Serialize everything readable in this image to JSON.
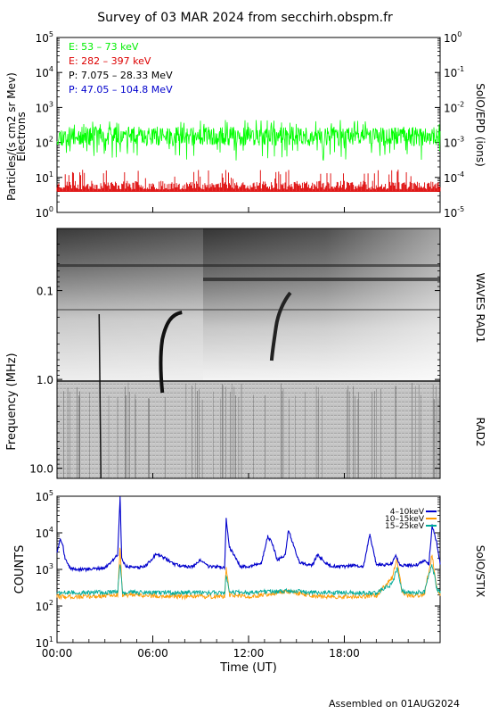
{
  "title": "Survey of 03 MAR 2024 from secchirh.obspm.fr",
  "footer": "Assembled on 01AUG2024",
  "colors": {
    "green": "#00ff00",
    "red": "#dd0000",
    "black": "#000000",
    "blue": "#0000cc",
    "orange": "#ff9900",
    "teal": "#00aa99"
  },
  "chart_data": [
    {
      "type": "line",
      "panel": "particles",
      "ylabel": "Particles/(s cm2 sr Mev)",
      "ylabel2": "Electrons",
      "right_label": "SolO/EPD (ions)",
      "yscale": "log",
      "ylim": [
        1,
        100000
      ],
      "y_ticks": [
        {
          "base": "10",
          "exp": "0"
        },
        {
          "base": "10",
          "exp": "1"
        },
        {
          "base": "10",
          "exp": "2"
        },
        {
          "base": "10",
          "exp": "3"
        },
        {
          "base": "10",
          "exp": "4"
        },
        {
          "base": "10",
          "exp": "5"
        }
      ],
      "right_ylim": [
        1e-05,
        1
      ],
      "right_ticks": [
        {
          "base": "10",
          "exp": "-5"
        },
        {
          "base": "10",
          "exp": "-4"
        },
        {
          "base": "10",
          "exp": "-3"
        },
        {
          "base": "10",
          "exp": "-2"
        },
        {
          "base": "10",
          "exp": "-1"
        },
        {
          "base": "10",
          "exp": "0"
        }
      ],
      "legend": [
        {
          "label": "E: 53 – 73 keV",
          "color": "#00ff00"
        },
        {
          "label": "E: 282 – 397 keV",
          "color": "#dd0000"
        },
        {
          "label": "P: 7.075 – 28.33 MeV",
          "color": "#000000"
        },
        {
          "label": "P: 47.05 – 104.8 MeV",
          "color": "#0000cc"
        }
      ],
      "series": [
        {
          "name": "E: 53 – 73 keV",
          "color": "#00ff00",
          "x_hours": [
            0,
            24
          ],
          "y_typical": 150,
          "y_range": [
            30,
            450
          ]
        },
        {
          "name": "E: 282 – 397 keV",
          "color": "#dd0000",
          "x_hours": [
            0,
            24
          ],
          "y_typical": 6,
          "y_range": [
            4,
            20
          ]
        }
      ]
    },
    {
      "type": "heatmap",
      "panel": "waves",
      "ylabel": "Frequency (MHz)",
      "yscale": "log",
      "ylim": [
        13,
        0.02
      ],
      "y_ticks": [
        {
          "label": "0.1",
          "value": 0.1
        },
        {
          "label": "1.0",
          "value": 1.0
        },
        {
          "label": "10.0",
          "value": 10.0
        }
      ],
      "right_labels": [
        "WAVES RAD1",
        "RAD2"
      ],
      "bursts_hours": [
        2.75,
        6.6,
        13.5
      ]
    },
    {
      "type": "line",
      "panel": "stix",
      "ylabel": "COUNTS",
      "right_label": "SolO/STIX",
      "yscale": "log",
      "ylim": [
        10,
        100000
      ],
      "y_ticks": [
        {
          "base": "10",
          "exp": "1"
        },
        {
          "base": "10",
          "exp": "2"
        },
        {
          "base": "10",
          "exp": "3"
        },
        {
          "base": "10",
          "exp": "4"
        },
        {
          "base": "10",
          "exp": "5"
        }
      ],
      "xlabel": "Time (UT)",
      "x_ticks": [
        "00:00",
        "06:00",
        "12:00",
        "18:00"
      ],
      "x_ticks_hours": [
        0,
        6,
        12,
        18
      ],
      "xlim": [
        0,
        24
      ],
      "legend": [
        {
          "label": "4–10keV",
          "color": "#0000cc"
        },
        {
          "label": "10–15keV",
          "color": "#ff9900"
        },
        {
          "label": "15–25keV",
          "color": "#00aa99"
        }
      ],
      "series": [
        {
          "name": "4–10keV",
          "color": "#0000cc",
          "x": [
            0.0,
            0.2,
            0.35,
            0.5,
            0.8,
            1.2,
            2.0,
            3.0,
            3.8,
            3.95,
            4.05,
            4.3,
            5.0,
            5.5,
            5.9,
            6.2,
            6.7,
            7.3,
            8.0,
            8.5,
            9.0,
            9.5,
            10.0,
            10.5,
            10.6,
            10.8,
            11.5,
            12.0,
            12.8,
            13.2,
            13.5,
            13.8,
            14.3,
            14.5,
            15.2,
            16.0,
            16.3,
            17.0,
            17.5,
            18.0,
            18.5,
            19.2,
            19.6,
            20.0,
            20.5,
            21.0,
            21.2,
            21.5,
            22.0,
            22.5,
            23.0,
            23.3,
            23.5,
            23.8,
            24.0
          ],
          "y": [
            3000,
            7000,
            5000,
            2000,
            1100,
            1000,
            1000,
            1100,
            2500,
            90000,
            2000,
            1200,
            1100,
            1200,
            1800,
            2600,
            2100,
            1400,
            1200,
            1200,
            1800,
            1200,
            1200,
            1100,
            25000,
            4000,
            1200,
            1200,
            1500,
            8000,
            5000,
            1800,
            2500,
            12000,
            1500,
            1300,
            2500,
            1300,
            1200,
            1200,
            1300,
            1200,
            9000,
            1400,
            1300,
            1500,
            2500,
            1300,
            1300,
            1300,
            1800,
            1400,
            16000,
            5000,
            1400
          ]
        },
        {
          "name": "10–15keV",
          "color": "#ff9900",
          "x": [
            0.0,
            2.0,
            3.8,
            3.95,
            4.1,
            6.0,
            8.0,
            10.5,
            10.6,
            10.8,
            12.0,
            13.5,
            14.5,
            16.0,
            18.0,
            20.0,
            21.0,
            21.3,
            21.6,
            22.0,
            23.0,
            23.5,
            23.8,
            24.0
          ],
          "y": [
            180,
            180,
            200,
            4000,
            200,
            190,
            180,
            180,
            1200,
            200,
            180,
            220,
            250,
            180,
            180,
            190,
            600,
            2000,
            250,
            190,
            200,
            2500,
            300,
            200
          ]
        },
        {
          "name": "15–25keV",
          "color": "#00aa99",
          "x": [
            0.0,
            2.0,
            3.8,
            3.95,
            4.1,
            6.0,
            8.0,
            10.5,
            10.6,
            10.8,
            12.0,
            13.5,
            14.5,
            16.0,
            18.0,
            20.0,
            21.0,
            21.3,
            21.6,
            22.0,
            23.0,
            23.5,
            23.8,
            24.0
          ],
          "y": [
            230,
            230,
            240,
            1500,
            240,
            230,
            230,
            230,
            700,
            240,
            230,
            250,
            260,
            230,
            230,
            230,
            400,
            1100,
            260,
            230,
            240,
            1400,
            280,
            240
          ]
        }
      ]
    }
  ]
}
